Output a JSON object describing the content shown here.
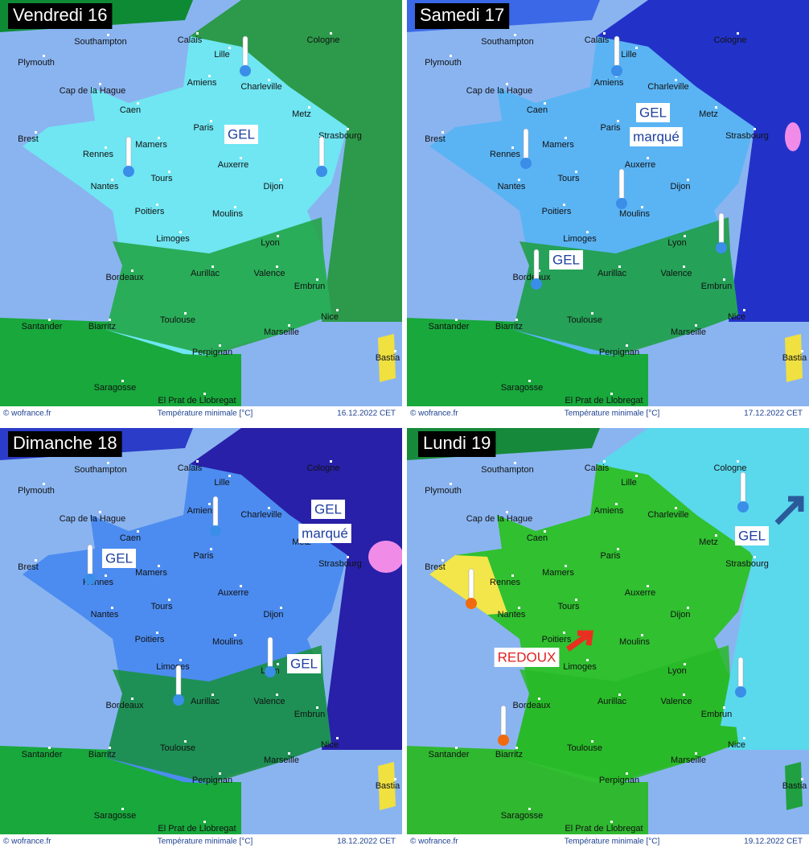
{
  "panels": [
    {
      "title": "Vendredi 16",
      "cities": [
        "Southampton",
        "Plymouth",
        "Calais",
        "Cologne",
        "Lille",
        "Amiens",
        "Charleville",
        "Cap de la Hague",
        "Caen",
        "Metz",
        "Paris",
        "Strasbourg",
        "Brest",
        "Mamers",
        "Rennes",
        "Auxerre",
        "Nantes",
        "Tours",
        "Dijon",
        "Poitiers",
        "Moulins",
        "Limoges",
        "Lyon",
        "Bordeaux",
        "Aurillac",
        "Valence",
        "Embrun",
        "Toulouse",
        "Nice",
        "Santander",
        "Biarritz",
        "Marseille",
        "Perpignan",
        "Bastia",
        "Saragosse",
        "El Prat de Llobregat"
      ],
      "annotations": [
        "GEL"
      ],
      "footer": {
        "source": "© wofrance.fr",
        "caption": "Température minimale [°C]",
        "date": "16.12.2022 CET"
      }
    },
    {
      "title": "Samedi 17",
      "cities": [
        "Southampton",
        "Plymouth",
        "Calais",
        "Cologne",
        "Lille",
        "Amiens",
        "Charleville",
        "Cap de la Hague",
        "Caen",
        "Metz",
        "Paris",
        "Strasbourg",
        "Brest",
        "Mamers",
        "Rennes",
        "Auxerre",
        "Nantes",
        "Tours",
        "Dijon",
        "Poitiers",
        "Moulins",
        "Limoges",
        "Lyon",
        "Bordeaux",
        "Aurillac",
        "Valence",
        "Embrun",
        "Toulouse",
        "Nice",
        "Santander",
        "Biarritz",
        "Marseille",
        "Perpignan",
        "Bastia",
        "Saragosse",
        "El Prat de Llobregat"
      ],
      "annotations": [
        "GEL",
        "marqué",
        "GEL"
      ],
      "footer": {
        "source": "© wofrance.fr",
        "caption": "Température minimale [°C]",
        "date": "17.12.2022 CET"
      }
    },
    {
      "title": "Dimanche 18",
      "cities": [
        "Southampton",
        "Plymouth",
        "Calais",
        "Cologne",
        "Lille",
        "Amiens",
        "Charleville",
        "Cap de la Hague",
        "Caen",
        "Metz",
        "Paris",
        "Strasbourg",
        "Brest",
        "Mamers",
        "Rennes",
        "Auxerre",
        "Nantes",
        "Tours",
        "Dijon",
        "Poitiers",
        "Moulins",
        "Limoges",
        "Lyon",
        "Bordeaux",
        "Aurillac",
        "Valence",
        "Embrun",
        "Toulouse",
        "Nice",
        "Santander",
        "Biarritz",
        "Marseille",
        "Perpignan",
        "Bastia",
        "Saragosse",
        "El Prat de Llobregat"
      ],
      "annotations": [
        "GEL",
        "marqué",
        "GEL",
        "GEL"
      ],
      "footer": {
        "source": "© wofrance.fr",
        "caption": "Température minimale [°C]",
        "date": "18.12.2022 CET"
      }
    },
    {
      "title": "Lundi 19",
      "cities": [
        "Southampton",
        "Plymouth",
        "Calais",
        "Cologne",
        "Lille",
        "Amiens",
        "Charleville",
        "Cap de la Hague",
        "Caen",
        "Metz",
        "Paris",
        "Strasbourg",
        "Brest",
        "Mamers",
        "Rennes",
        "Auxerre",
        "Nantes",
        "Tours",
        "Dijon",
        "Poitiers",
        "Moulins",
        "Limoges",
        "Lyon",
        "Bordeaux",
        "Aurillac",
        "Valence",
        "Embrun",
        "Toulouse",
        "Nice",
        "Santander",
        "Biarritz",
        "Marseille",
        "Perpignan",
        "Bastia",
        "Saragosse",
        "El Prat de Llobregat"
      ],
      "annotations": [
        "GEL",
        "REDOUX"
      ],
      "footer": {
        "source": "© wofrance.fr",
        "caption": "Température minimale [°C]",
        "date": "19.12.2022 CET"
      }
    }
  ]
}
